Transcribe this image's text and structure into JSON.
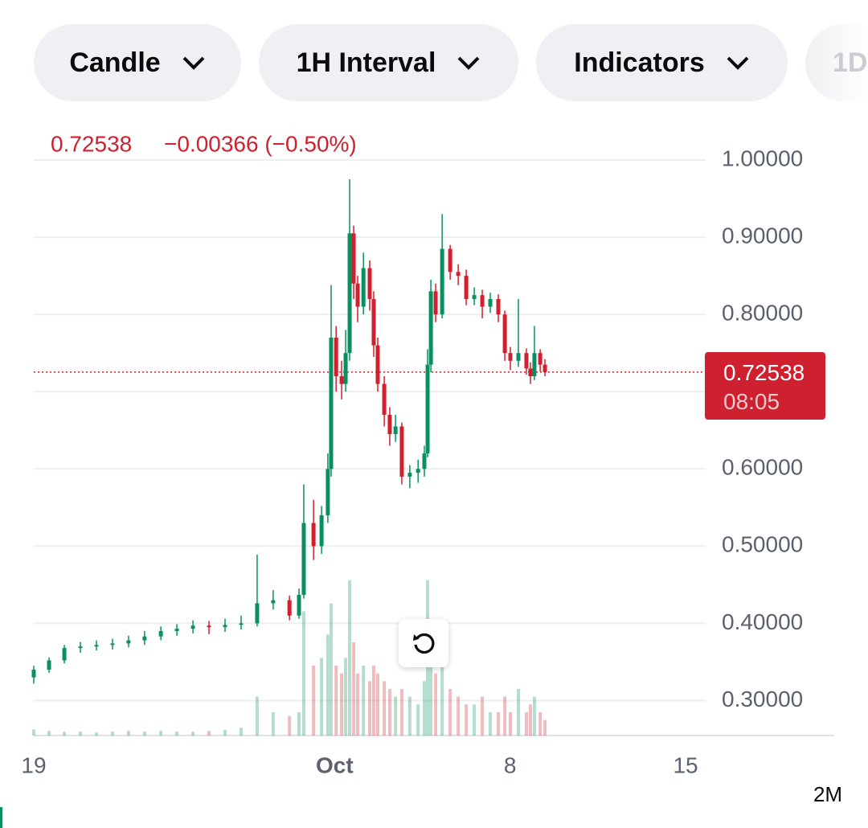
{
  "toolbar": {
    "buttons": [
      "Candle",
      "1H Interval",
      "Indicators",
      "1D"
    ]
  },
  "header": {
    "last": "0.72538",
    "change": "−0.00366 (−0.50%)"
  },
  "price_tag": {
    "countdown": "08:05"
  },
  "volume_label": "2M",
  "chart_data": {
    "type": "candlestick",
    "last_price": 0.72538,
    "up_color": "#0b8f5f",
    "down_color": "#cf202f",
    "xlim": [
      19,
      45.8
    ],
    "xticks": [
      19,
      {
        "value": 31,
        "label": "Oct"
      },
      {
        "value": 38,
        "label": "8"
      },
      {
        "value": 45,
        "label": "15"
      }
    ],
    "ylim": [
      0.2547,
      1.0094
    ],
    "yticks": [
      {
        "value": 0.3,
        "label": "0.30000"
      },
      {
        "value": 0.4,
        "label": "0.40000"
      },
      {
        "value": 0.5,
        "label": "0.50000"
      },
      {
        "value": 0.6,
        "label": "0.60000"
      },
      {
        "value": 0.7,
        "label": "0.70000"
      },
      {
        "value": 0.8,
        "label": "0.80000"
      },
      {
        "value": 0.9,
        "label": "0.90000"
      },
      {
        "value": 1.0,
        "label": "1.00000"
      }
    ],
    "grid": true,
    "volume_lim": [
      0,
      7.5
    ],
    "x": [
      19.0,
      19.61,
      20.22,
      20.86,
      21.5,
      22.14,
      22.78,
      23.42,
      24.07,
      24.71,
      25.35,
      25.99,
      26.63,
      27.27,
      27.91,
      28.55,
      29.2,
      29.58,
      29.77,
      30.16,
      30.48,
      30.73,
      30.86,
      31.06,
      31.28,
      31.44,
      31.6,
      31.76,
      31.92,
      32.15,
      32.4,
      32.56,
      32.72,
      32.98,
      33.2,
      33.43,
      33.68,
      34.0,
      34.33,
      34.58,
      34.71,
      34.84,
      35.03,
      35.29,
      35.61,
      35.93,
      36.25,
      36.57,
      36.89,
      37.21,
      37.53,
      37.79,
      38.01,
      38.33,
      38.65,
      38.81,
      38.97,
      39.2,
      39.39
    ],
    "open": [
      0.33,
      0.34,
      0.352,
      0.368,
      0.37,
      0.372,
      0.374,
      0.378,
      0.383,
      0.39,
      0.393,
      0.397,
      0.395,
      0.398,
      0.4,
      0.426,
      0.43,
      0.41,
      0.437,
      0.53,
      0.5,
      0.54,
      0.6,
      0.77,
      0.72,
      0.71,
      0.75,
      0.905,
      0.84,
      0.81,
      0.86,
      0.82,
      0.76,
      0.71,
      0.67,
      0.645,
      0.655,
      0.59,
      0.595,
      0.6,
      0.62,
      0.735,
      0.83,
      0.8,
      0.885,
      0.855,
      0.85,
      0.82,
      0.825,
      0.81,
      0.82,
      0.8,
      0.75,
      0.74,
      0.75,
      0.73,
      0.72,
      0.75,
      0.735
    ],
    "high": [
      0.345,
      0.356,
      0.372,
      0.376,
      0.378,
      0.38,
      0.384,
      0.39,
      0.396,
      0.399,
      0.404,
      0.403,
      0.406,
      0.41,
      0.489,
      0.443,
      0.436,
      0.445,
      0.58,
      0.56,
      0.552,
      0.62,
      0.838,
      0.785,
      0.74,
      0.78,
      0.975,
      0.915,
      0.85,
      0.88,
      0.87,
      0.83,
      0.77,
      0.72,
      0.68,
      0.67,
      0.66,
      0.605,
      0.612,
      0.63,
      0.755,
      0.845,
      0.84,
      0.93,
      0.89,
      0.865,
      0.858,
      0.835,
      0.832,
      0.828,
      0.826,
      0.805,
      0.758,
      0.82,
      0.756,
      0.738,
      0.785,
      0.755,
      0.742
    ],
    "low": [
      0.322,
      0.336,
      0.348,
      0.362,
      0.365,
      0.366,
      0.369,
      0.372,
      0.378,
      0.384,
      0.387,
      0.386,
      0.389,
      0.392,
      0.396,
      0.418,
      0.404,
      0.406,
      0.432,
      0.482,
      0.49,
      0.53,
      0.59,
      0.7,
      0.69,
      0.7,
      0.74,
      0.82,
      0.79,
      0.8,
      0.805,
      0.745,
      0.7,
      0.655,
      0.63,
      0.635,
      0.58,
      0.575,
      0.582,
      0.59,
      0.615,
      0.725,
      0.79,
      0.795,
      0.845,
      0.838,
      0.812,
      0.812,
      0.795,
      0.802,
      0.79,
      0.74,
      0.728,
      0.732,
      0.722,
      0.71,
      0.715,
      0.726,
      0.72
    ],
    "close": [
      0.34,
      0.352,
      0.368,
      0.37,
      0.372,
      0.374,
      0.378,
      0.383,
      0.39,
      0.393,
      0.397,
      0.395,
      0.398,
      0.4,
      0.426,
      0.43,
      0.41,
      0.437,
      0.53,
      0.5,
      0.54,
      0.6,
      0.77,
      0.72,
      0.71,
      0.75,
      0.905,
      0.84,
      0.81,
      0.86,
      0.82,
      0.76,
      0.71,
      0.67,
      0.645,
      0.655,
      0.59,
      0.595,
      0.6,
      0.62,
      0.735,
      0.83,
      0.8,
      0.885,
      0.855,
      0.85,
      0.82,
      0.825,
      0.81,
      0.82,
      0.8,
      0.75,
      0.74,
      0.75,
      0.73,
      0.72,
      0.75,
      0.735,
      0.72538
    ],
    "volume": [
      0.08,
      0.06,
      0.05,
      0.05,
      0.04,
      0.05,
      0.06,
      0.05,
      0.06,
      0.05,
      0.05,
      0.06,
      0.07,
      0.1,
      0.5,
      0.3,
      0.25,
      0.3,
      1.6,
      0.9,
      1.0,
      1.3,
      1.7,
      0.9,
      0.8,
      1.0,
      2.0,
      1.2,
      0.8,
      0.9,
      0.7,
      0.9,
      0.8,
      0.7,
      0.6,
      0.5,
      0.6,
      0.5,
      0.4,
      0.7,
      2.0,
      1.3,
      0.8,
      0.9,
      0.6,
      0.5,
      0.4,
      0.4,
      0.5,
      0.3,
      0.3,
      0.5,
      0.3,
      0.6,
      0.3,
      0.4,
      0.5,
      0.3,
      0.2
    ]
  }
}
